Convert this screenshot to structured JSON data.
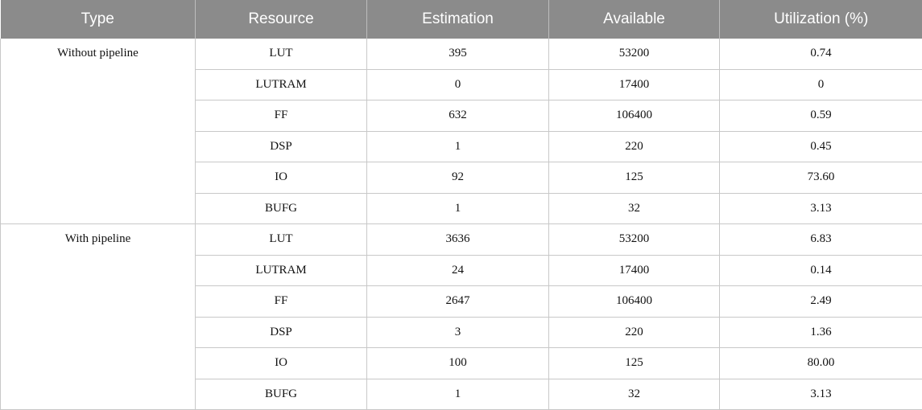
{
  "table": {
    "headers": [
      "Type",
      "Resource",
      "Estimation",
      "Available",
      "Utilization (%)"
    ],
    "groups": [
      {
        "type": "Without pipeline",
        "rows": [
          {
            "resource": "LUT",
            "estimation": "395",
            "available": "53200",
            "utilization": "0.74"
          },
          {
            "resource": "LUTRAM",
            "estimation": "0",
            "available": "17400",
            "utilization": "0"
          },
          {
            "resource": "FF",
            "estimation": "632",
            "available": "106400",
            "utilization": "0.59"
          },
          {
            "resource": "DSP",
            "estimation": "1",
            "available": "220",
            "utilization": "0.45"
          },
          {
            "resource": "IO",
            "estimation": "92",
            "available": "125",
            "utilization": "73.60"
          },
          {
            "resource": "BUFG",
            "estimation": "1",
            "available": "32",
            "utilization": "3.13"
          }
        ]
      },
      {
        "type": "With pipeline",
        "rows": [
          {
            "resource": "LUT",
            "estimation": "3636",
            "available": "53200",
            "utilization": "6.83"
          },
          {
            "resource": "LUTRAM",
            "estimation": "24",
            "available": "17400",
            "utilization": "0.14"
          },
          {
            "resource": "FF",
            "estimation": "2647",
            "available": "106400",
            "utilization": "2.49"
          },
          {
            "resource": "DSP",
            "estimation": "3",
            "available": "220",
            "utilization": "1.36"
          },
          {
            "resource": "IO",
            "estimation": "100",
            "available": "125",
            "utilization": "80.00"
          },
          {
            "resource": "BUFG",
            "estimation": "1",
            "available": "32",
            "utilization": "3.13"
          }
        ]
      }
    ]
  }
}
